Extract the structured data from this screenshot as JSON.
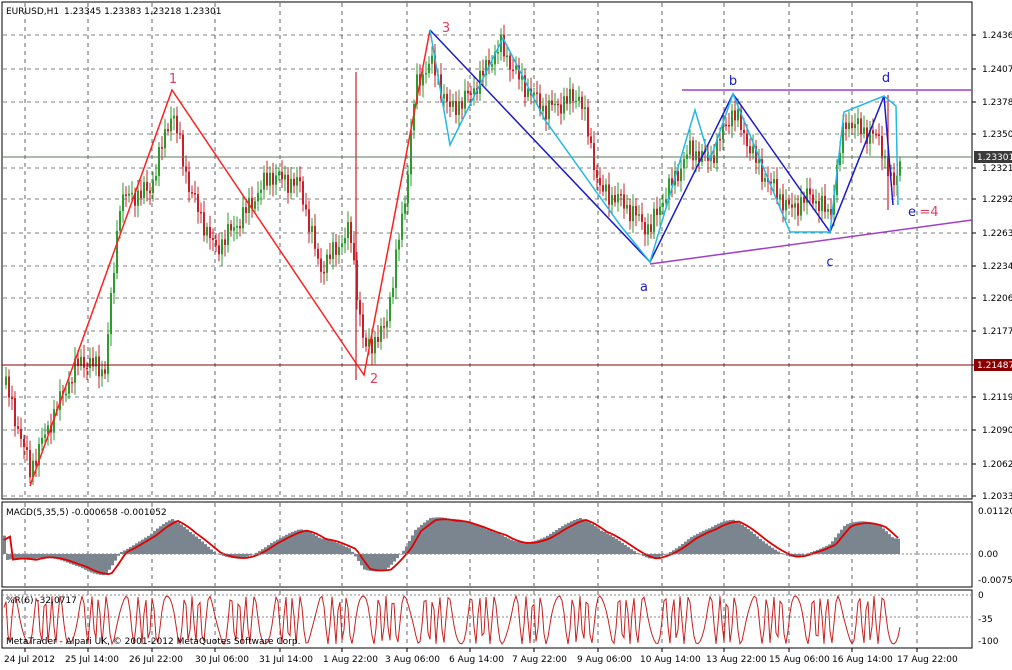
{
  "window": {
    "title": "EURUSD,H1",
    "ohlc": "1.23345 1.23383 1.23218 1.23301",
    "copyright": "MetaTrader - Alpari UK, © 2001-2012 MetaQuotes Software Corp."
  },
  "price_axis": {
    "ticks": [
      "1.24365",
      "1.24070",
      "1.23785",
      "1.23500",
      "1.23210",
      "1.22925",
      "1.22635",
      "1.22345",
      "1.22060",
      "1.21770",
      "1.21485",
      "1.21195",
      "1.20905",
      "1.20620",
      "1.20330"
    ],
    "bid_label": "1.23301",
    "level_label": "1.21487"
  },
  "macd": {
    "label": "MACD(5,35,5) -0.000658 -0.001052",
    "ticks": [
      "0.01120",
      "0.00",
      "-0.00750"
    ]
  },
  "wpr": {
    "label": "%R(6) -32.0717",
    "ticks": [
      "0",
      "-35",
      "-100"
    ]
  },
  "time_axis": [
    "24 Jul 2012",
    "25 Jul 14:00",
    "26 Jul 22:00",
    "30 Jul 06:00",
    "31 Jul 14:00",
    "1 Aug 22:00",
    "3 Aug 06:00",
    "6 Aug 14:00",
    "7 Aug 22:00",
    "9 Aug 06:00",
    "10 Aug 14:00",
    "13 Aug 22:00",
    "15 Aug 06:00",
    "16 Aug 14:00",
    "17 Aug 22:00"
  ],
  "wave_labels": {
    "w1": "1",
    "w2": "2",
    "w3": "3",
    "a": "a",
    "b": "b",
    "c": "c",
    "d": "d",
    "e": "e",
    "e4": "=4"
  },
  "colors": {
    "bull": "#2e9b2e",
    "bear": "#c8202a",
    "impulse": "#ff2020",
    "corrective_blue": "#1a1acc",
    "corrective_cyan": "#22b8e8",
    "trendline": "#a040c8",
    "hline_gray": "#5a7a5a",
    "hline_red": "#8b0000",
    "macd_hist": "#7a8590",
    "macd_signal": "#e00000",
    "wpr_line": "#c82020",
    "bid_box": "#3a3a3a"
  }
}
